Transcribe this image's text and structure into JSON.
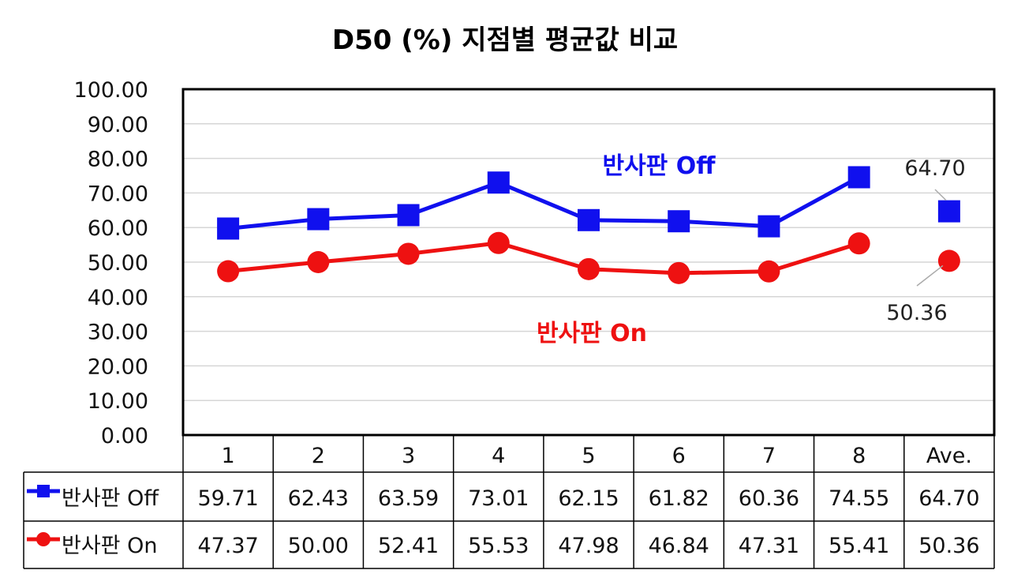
{
  "chart_data": {
    "type": "line",
    "title": "D50 (%) 지점별 평균값 비교",
    "categories": [
      "1",
      "2",
      "3",
      "4",
      "5",
      "6",
      "7",
      "8",
      "Ave."
    ],
    "ylim": [
      0,
      100
    ],
    "yticks": [
      "0.00",
      "10.00",
      "20.00",
      "30.00",
      "40.00",
      "50.00",
      "60.00",
      "70.00",
      "80.00",
      "90.00",
      "100.00"
    ],
    "grid": true,
    "series": [
      {
        "name": "반사판 Off",
        "color": "#1010ee",
        "marker": "square",
        "values": [
          59.71,
          62.43,
          63.59,
          73.01,
          62.15,
          61.82,
          60.36,
          74.55,
          64.7
        ],
        "values_text": [
          "59.71",
          "62.43",
          "63.59",
          "73.01",
          "62.15",
          "61.82",
          "60.36",
          "74.55",
          "64.70"
        ],
        "inline_label": "반사판 Off",
        "average_annotation": "64.70"
      },
      {
        "name": "반사판 On",
        "color": "#ee1111",
        "marker": "circle",
        "values": [
          47.37,
          50.0,
          52.41,
          55.53,
          47.98,
          46.84,
          47.31,
          55.41,
          50.36
        ],
        "values_text": [
          "47.37",
          "50.00",
          "52.41",
          "55.53",
          "47.98",
          "46.84",
          "47.31",
          "55.41",
          "50.36"
        ],
        "inline_label": "반사판 On",
        "average_annotation": "50.36"
      }
    ]
  }
}
